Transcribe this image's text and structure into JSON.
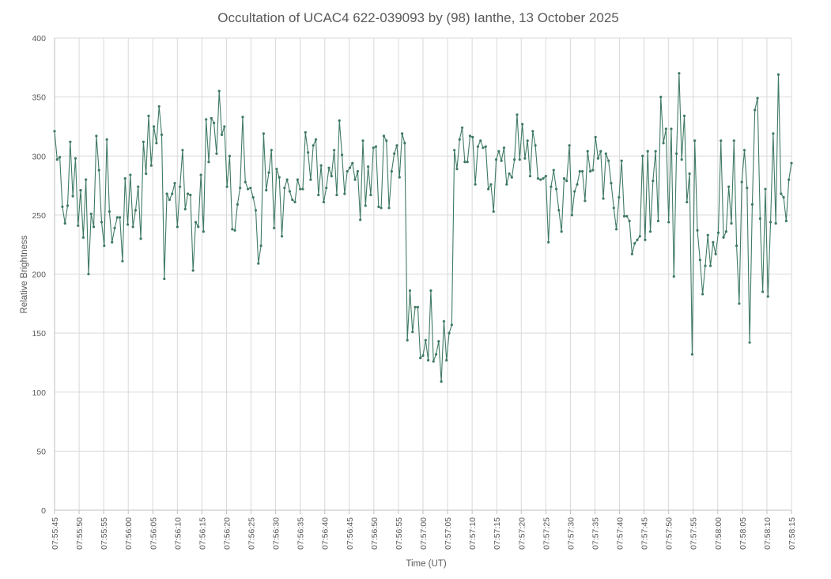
{
  "chart_data": {
    "type": "line",
    "title": "Occultation of UCAC4 622-039093 by (98) Ianthe, 13 October 2025",
    "xlabel": "Time (UT)",
    "ylabel": "Relative Brightness",
    "xlim": [
      "07:55:45",
      "07:58:15"
    ],
    "ylim": [
      0,
      400
    ],
    "yticks": [
      "0",
      "50",
      "100",
      "150",
      "200",
      "250",
      "300",
      "350",
      "400"
    ],
    "xticks": [
      "07:55:45",
      "07:55:50",
      "07:55:55",
      "07:56:00",
      "07:56:05",
      "07:56:10",
      "07:56:15",
      "07:56:20",
      "07:56:25",
      "07:56:30",
      "07:56:35",
      "07:56:40",
      "07:56:45",
      "07:56:50",
      "07:56:55",
      "07:57:00",
      "07:57:05",
      "07:57:10",
      "07:57:15",
      "07:57:20",
      "07:57:25",
      "07:57:30",
      "07:57:35",
      "07:57:40",
      "07:57:45",
      "07:57:50",
      "07:57:55",
      "07:58:00",
      "07:58:05",
      "07:58:10",
      "07:58:15"
    ],
    "grid": true,
    "legend": "none",
    "series_color": "#3f7a63",
    "series": [
      {
        "values": [
          321,
          297,
          299,
          257,
          243,
          258,
          312,
          266,
          298,
          241,
          271,
          231,
          280,
          200,
          251,
          240,
          317,
          288,
          244,
          224,
          314,
          253,
          227,
          239,
          248,
          248,
          211,
          281,
          242,
          284,
          240,
          254,
          274,
          230,
          312,
          285,
          334,
          292,
          325,
          311,
          342,
          318,
          196,
          268,
          263,
          268,
          277,
          240,
          274,
          305,
          255,
          268,
          267,
          203,
          244,
          240,
          284,
          236,
          331,
          295,
          332,
          328,
          302,
          355,
          318,
          325,
          274,
          300,
          238,
          237,
          259,
          273,
          333,
          278,
          272,
          273,
          265,
          254,
          209,
          224,
          319,
          271,
          286,
          305,
          239,
          289,
          282,
          232,
          273,
          280,
          270,
          263,
          261,
          280,
          272,
          272,
          320,
          303,
          280,
          309,
          314,
          267,
          292,
          261,
          273,
          290,
          283,
          305,
          267,
          330,
          301,
          268,
          287,
          290,
          294,
          280,
          287,
          246,
          313,
          258,
          291,
          267,
          307,
          308,
          257,
          256,
          317,
          313,
          256,
          287,
          302,
          309,
          282,
          319,
          311,
          144,
          186,
          151,
          172,
          172,
          129,
          131,
          144,
          127,
          186,
          126,
          132,
          143,
          109,
          160,
          127,
          150,
          157,
          305,
          289,
          314,
          324,
          295,
          295,
          317,
          316,
          276,
          308,
          313,
          307,
          308,
          272,
          276,
          253,
          297,
          304,
          296,
          307,
          276,
          285,
          282,
          297,
          335,
          297,
          327,
          298,
          313,
          283,
          321,
          309,
          281,
          280,
          281,
          283,
          227,
          274,
          288,
          272,
          254,
          236,
          281,
          279,
          309,
          250,
          270,
          276,
          287,
          287,
          262,
          304,
          287,
          288,
          316,
          298,
          304,
          264,
          302,
          296,
          277,
          256,
          238,
          265,
          296,
          249,
          249,
          245,
          217,
          226,
          229,
          232,
          300,
          229,
          304,
          236,
          279,
          304,
          245,
          350,
          311,
          323,
          244,
          323,
          198,
          302,
          370,
          297,
          334,
          261,
          285,
          132,
          313,
          237,
          212,
          183,
          207,
          233,
          207,
          227,
          217,
          235,
          313,
          231,
          236,
          274,
          243,
          313,
          224,
          175,
          278,
          305,
          273,
          142,
          259,
          339,
          349,
          247,
          185,
          272,
          181,
          244,
          319,
          243,
          369,
          268,
          265,
          245,
          280,
          294
        ]
      }
    ]
  }
}
